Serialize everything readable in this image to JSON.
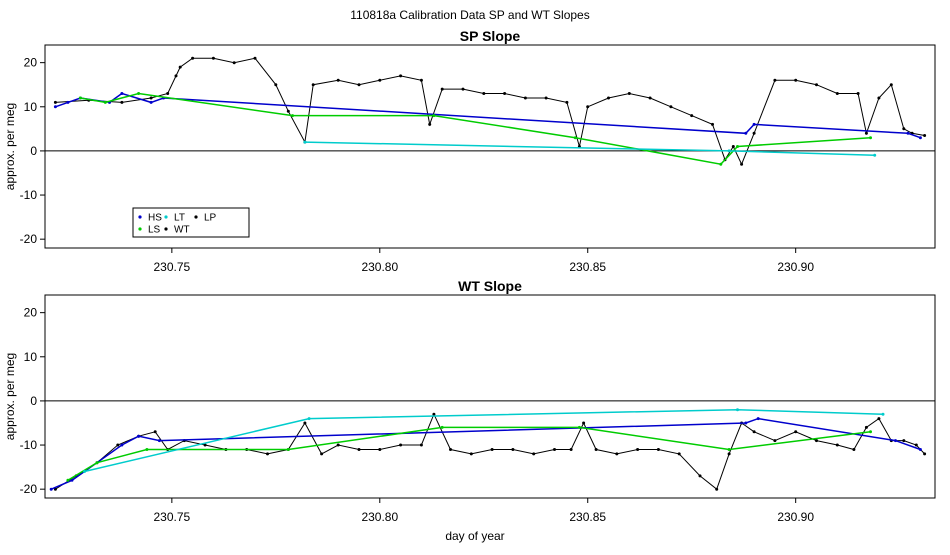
{
  "figure_title": "110818a   Calibration Data SP and WT Slopes",
  "xlabel": "day of year",
  "legend": {
    "entries": [
      {
        "label": "HS",
        "color": "#0000cc"
      },
      {
        "label": "LS",
        "color": "#00cc00"
      },
      {
        "label": "LT",
        "color": "#00cccc"
      },
      {
        "label": "WT",
        "color": "#000000"
      },
      {
        "label": "LP",
        "color": "#000000"
      }
    ]
  },
  "chart_data": [
    {
      "type": "line",
      "title": "SP Slope",
      "xlabel": "",
      "ylabel": "approx. per meg",
      "xlim": [
        230.7195,
        230.9335
      ],
      "ylim": [
        -22,
        24
      ],
      "xticks": [
        "230.75",
        "230.80",
        "230.85",
        "230.90"
      ],
      "xtick_values": [
        230.75,
        230.8,
        230.85,
        230.9
      ],
      "yticks": [
        "-20",
        "-10",
        "0",
        "10",
        "20"
      ],
      "ytick_values": [
        -20,
        -10,
        0,
        10,
        20
      ],
      "hline": 0,
      "series": [
        {
          "name": "WT",
          "color": "#000000",
          "x": [
            230.722,
            230.73,
            230.738,
            230.745,
            230.749,
            230.751,
            230.752,
            230.755,
            230.76,
            230.765,
            230.77,
            230.775,
            230.778,
            230.782,
            230.784,
            230.79,
            230.795,
            230.8,
            230.805,
            230.81,
            230.812,
            230.815,
            230.82,
            230.825,
            230.83,
            230.835,
            230.84,
            230.845,
            230.848,
            230.85,
            230.855,
            230.86,
            230.865,
            230.87,
            230.875,
            230.88,
            230.883,
            230.885,
            230.887,
            230.89,
            230.895,
            230.9,
            230.905,
            230.91,
            230.915,
            230.917,
            230.92,
            230.923,
            230.926,
            230.928,
            230.931
          ],
          "y": [
            11,
            11.5,
            11,
            12,
            13,
            17,
            19,
            21,
            21,
            20,
            21,
            15,
            9,
            2,
            15,
            16,
            15,
            16,
            17,
            16,
            6,
            14,
            14,
            13,
            13,
            12,
            12,
            11,
            1,
            10,
            12,
            13,
            12,
            10,
            8,
            6,
            -2,
            1,
            -3,
            4,
            16,
            16,
            15,
            13,
            13,
            4,
            12,
            15,
            5,
            4,
            3.5
          ]
        },
        {
          "name": "HS",
          "color": "#0000cc",
          "x": [
            230.722,
            230.725,
            230.728,
            230.735,
            230.738,
            230.745,
            230.748,
            230.888,
            230.89,
            230.927,
            230.93
          ],
          "y": [
            10,
            11,
            12,
            11,
            13,
            11,
            12,
            4,
            6,
            4,
            3
          ]
        },
        {
          "name": "LS",
          "color": "#00cc00",
          "x": [
            230.728,
            230.734,
            230.742,
            230.779,
            230.813,
            230.847,
            230.882,
            230.886,
            230.918
          ],
          "y": [
            12,
            11,
            13,
            8,
            8,
            3,
            -3,
            1,
            3
          ]
        },
        {
          "name": "LT",
          "color": "#00cccc",
          "x": [
            230.782,
            230.884,
            230.919
          ],
          "y": [
            2,
            0,
            -1
          ]
        }
      ]
    },
    {
      "type": "line",
      "title": "WT Slope",
      "xlabel": "day of year",
      "ylabel": "approx. per meg",
      "xlim": [
        230.7195,
        230.9335
      ],
      "ylim": [
        -22,
        24
      ],
      "xticks": [
        "230.75",
        "230.80",
        "230.85",
        "230.90"
      ],
      "xtick_values": [
        230.75,
        230.8,
        230.85,
        230.9
      ],
      "yticks": [
        "-20",
        "-10",
        "0",
        "10",
        "20"
      ],
      "ytick_values": [
        -20,
        -10,
        0,
        10,
        20
      ],
      "hline": 0,
      "series": [
        {
          "name": "WT",
          "color": "#000000",
          "x": [
            230.722,
            230.727,
            230.732,
            230.737,
            230.742,
            230.746,
            230.749,
            230.753,
            230.758,
            230.763,
            230.768,
            230.773,
            230.778,
            230.782,
            230.786,
            230.79,
            230.795,
            230.8,
            230.805,
            230.81,
            230.813,
            230.817,
            230.822,
            230.827,
            230.832,
            230.837,
            230.842,
            230.846,
            230.849,
            230.852,
            230.857,
            230.862,
            230.867,
            230.872,
            230.877,
            230.881,
            230.884,
            230.887,
            230.89,
            230.895,
            230.9,
            230.905,
            230.91,
            230.914,
            230.917,
            230.92,
            230.923,
            230.926,
            230.929,
            230.931
          ],
          "y": [
            -20,
            -17,
            -14,
            -10,
            -8,
            -7,
            -11,
            -9,
            -10,
            -11,
            -11,
            -12,
            -11,
            -5,
            -12,
            -10,
            -11,
            -11,
            -10,
            -10,
            -3,
            -11,
            -12,
            -11,
            -11,
            -12,
            -11,
            -11,
            -5,
            -11,
            -12,
            -11,
            -11,
            -12,
            -17,
            -20,
            -12,
            -5,
            -7,
            -9,
            -7,
            -9,
            -10,
            -11,
            -6,
            -4,
            -9,
            -9,
            -10,
            -12
          ]
        },
        {
          "name": "HS",
          "color": "#0000cc",
          "x": [
            230.721,
            230.726,
            230.738,
            230.742,
            230.747,
            230.888,
            230.891,
            230.924,
            230.93
          ],
          "y": [
            -20,
            -18,
            -10,
            -8,
            -9,
            -5,
            -4,
            -9,
            -11
          ]
        },
        {
          "name": "LS",
          "color": "#00cc00",
          "x": [
            230.725,
            230.732,
            230.744,
            230.778,
            230.815,
            230.848,
            230.884,
            230.918
          ],
          "y": [
            -18,
            -14,
            -11,
            -11,
            -6,
            -6,
            -11,
            -7
          ]
        },
        {
          "name": "LT",
          "color": "#00cccc",
          "x": [
            230.729,
            230.783,
            230.886,
            230.921
          ],
          "y": [
            -16,
            -4,
            -2,
            -3
          ]
        }
      ]
    }
  ]
}
